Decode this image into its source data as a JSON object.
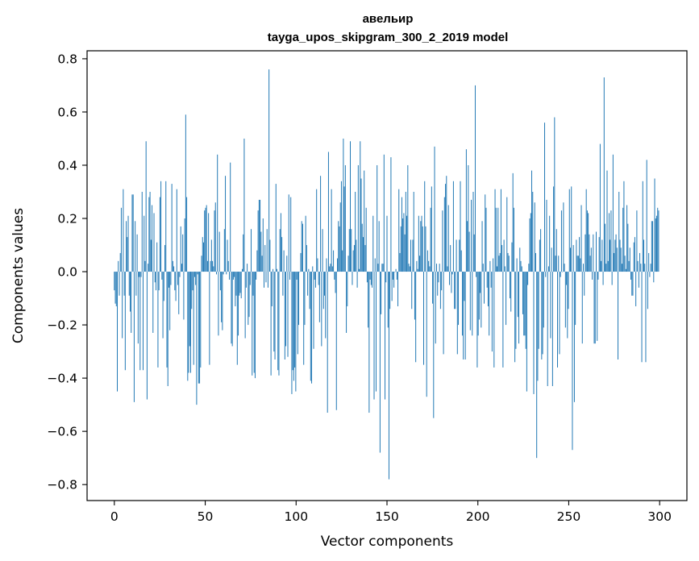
{
  "chart_data": {
    "type": "bar",
    "title": "авельир",
    "subtitle": "tayga_upos_skipgram_300_2_2019 model",
    "xlabel": "Vector components",
    "ylabel": "Components values",
    "xlim": [
      -15,
      315
    ],
    "ylim": [
      -0.86,
      0.83
    ],
    "xticks": [
      0,
      50,
      100,
      150,
      200,
      250,
      300
    ],
    "yticks": [
      -0.8,
      -0.6,
      -0.4,
      -0.2,
      0.0,
      0.2,
      0.4,
      0.6,
      0.8
    ],
    "ytick_labels": [
      "−0.8",
      "−0.6",
      "−0.4",
      "−0.2",
      "0.0",
      "0.2",
      "0.4",
      "0.6",
      "0.8"
    ],
    "bar_color": "#1f77b4",
    "grid": false,
    "values": [
      -0.07,
      -0.12,
      -0.13,
      -0.45,
      0.04,
      -0.09,
      0.07,
      0.24,
      -0.25,
      0.31,
      -0.09,
      -0.37,
      0.19,
      0.13,
      0.21,
      -0.09,
      -0.15,
      -0.23,
      0.29,
      0.29,
      -0.49,
      0.19,
      -0.09,
      0.14,
      -0.27,
      -0.02,
      -0.37,
      -0.02,
      0.3,
      -0.37,
      0.21,
      0.04,
      0.49,
      -0.48,
      0.03,
      0.28,
      0.3,
      0.12,
      0.25,
      -0.23,
      0.22,
      -0.04,
      -0.07,
      0.11,
      -0.36,
      -0.07,
      0.28,
      0.34,
      -0.03,
      -0.25,
      -0.11,
      0.1,
      0.34,
      -0.36,
      -0.43,
      -0.06,
      -0.22,
      -0.05,
      0.33,
      0.04,
      0.02,
      -0.07,
      -0.11,
      0.31,
      -0.05,
      -0.16,
      -0.02,
      0.17,
      0.03,
      0.14,
      -0.18,
      0.2,
      0.59,
      0.28,
      -0.41,
      -0.38,
      -0.28,
      -0.38,
      -0.14,
      -0.07,
      -0.35,
      -0.02,
      -0.05,
      -0.5,
      -0.01,
      -0.42,
      -0.42,
      -0.36,
      0.06,
      0.13,
      0.11,
      0.23,
      0.24,
      0.25,
      0.04,
      0.22,
      -0.35,
      0.04,
      0.12,
      0.04,
      0.02,
      0.23,
      0.26,
      -0.01,
      0.44,
      -0.24,
      0.15,
      -0.07,
      -0.19,
      -0.22,
      -0.01,
      0.16,
      0.36,
      -0.01,
      0.12,
      0.04,
      -0.03,
      0.41,
      -0.27,
      -0.28,
      -0.03,
      -0.02,
      -0.13,
      -0.09,
      -0.35,
      -0.24,
      -0.09,
      -0.08,
      -0.1,
      0.01,
      0.14,
      0.5,
      -0.25,
      -0.06,
      0.03,
      -0.2,
      -0.17,
      -0.05,
      0.16,
      -0.39,
      -0.09,
      -0.38,
      -0.4,
      -0.03,
      0.08,
      0.23,
      0.27,
      0.27,
      0.15,
      0.06,
      0.2,
      -0.06,
      0.1,
      -0.04,
      0.16,
      -0.06,
      0.76,
      0.12,
      -0.39,
      -0.13,
      0.01,
      -0.3,
      -0.33,
      0.33,
      0.01,
      -0.37,
      -0.39,
      0.16,
      0.22,
      0.13,
      -0.09,
      0.08,
      -0.33,
      -0.28,
      0.06,
      -0.32,
      0.29,
      -0.03,
      0.28,
      -0.46,
      -0.37,
      -0.41,
      -0.36,
      -0.45,
      -0.03,
      -0.31,
      -0.2,
      0.0,
      0.07,
      0.19,
      0.18,
      -0.35,
      -0.2,
      0.21,
      0.1,
      -0.09,
      0.01,
      -0.14,
      -0.41,
      -0.42,
      0.02,
      -0.29,
      -0.03,
      -0.06,
      0.31,
      0.05,
      -0.05,
      -0.19,
      0.36,
      -0.28,
      0.16,
      -0.14,
      -0.09,
      -0.25,
      0.05,
      -0.53,
      0.45,
      0.02,
      0.03,
      0.31,
      0.02,
      0.08,
      -0.03,
      -0.08,
      -0.52,
      0.05,
      0.19,
      0.17,
      0.26,
      0.34,
      0.08,
      0.5,
      0.32,
      0.4,
      -0.23,
      -0.13,
      0.06,
      0.16,
      0.49,
      0.16,
      -0.05,
      0.08,
      0.1,
      0.3,
      0.12,
      -0.06,
      0.4,
      0.01,
      0.49,
      0.35,
      0.18,
      0.13,
      0.38,
      0.1,
      0.24,
      -0.04,
      -0.21,
      -0.53,
      -0.03,
      -0.05,
      -0.06,
      0.21,
      -0.48,
      0.05,
      -0.45,
      0.4,
      0.03,
      0.19,
      -0.68,
      -0.16,
      0.03,
      0.03,
      0.44,
      -0.48,
      -0.04,
      0.21,
      -0.21,
      -0.78,
      -0.14,
      0.43,
      -0.11,
      -0.03,
      -0.06,
      0.0,
      0.01,
      -0.03,
      -0.13,
      0.31,
      0.07,
      0.17,
      0.28,
      0.2,
      0.22,
      0.14,
      0.3,
      0.21,
      0.4,
      0.03,
      0.02,
      0.12,
      -0.14,
      0.12,
      0.3,
      -0.18,
      -0.34,
      0.04,
      0.01,
      0.21,
      0.06,
      0.19,
      0.21,
      0.17,
      -0.35,
      0.34,
      0.17,
      -0.47,
      0.08,
      0.04,
      0.02,
      0.24,
      0.32,
      -0.12,
      -0.55,
      0.47,
      -0.27,
      0.03,
      -0.09,
      -0.04,
      0.03,
      -0.14,
      -0.07,
      0.23,
      -0.31,
      0.28,
      0.33,
      0.36,
      0.02,
      0.25,
      -0.05,
      0.1,
      -0.08,
      -0.01,
      0.34,
      -0.14,
      -0.14,
      0.12,
      -0.31,
      -0.2,
      0.12,
      0.34,
      0.08,
      -0.24,
      -0.33,
      -0.11,
      -0.33,
      0.46,
      0.19,
      0.4,
      0.15,
      -0.22,
      0.27,
      -0.24,
      0.3,
      0.14,
      0.7,
      -0.02,
      -0.36,
      -0.24,
      -0.18,
      -0.08,
      -0.21,
      0.19,
      0.03,
      -0.12,
      0.29,
      0.24,
      -0.06,
      -0.13,
      -0.24,
      0.04,
      -0.06,
      -0.3,
      0.05,
      -0.36,
      0.31,
      0.24,
      0.02,
      0.24,
      0.06,
      0.07,
      0.31,
      0.1,
      -0.36,
      0.12,
      0.02,
      -0.2,
      0.28,
      0.07,
      0.06,
      -0.1,
      -0.15,
      0.11,
      0.37,
      0.24,
      -0.34,
      -0.29,
      0.05,
      -0.17,
      -0.27,
      0.09,
      0.04,
      0.02,
      -0.16,
      -0.24,
      -0.24,
      -0.29,
      -0.45,
      -0.05,
      0.03,
      0.2,
      0.22,
      0.38,
      0.3,
      -0.46,
      0.26,
      0.07,
      -0.7,
      -0.41,
      -0.29,
      0.12,
      0.16,
      -0.33,
      -0.31,
      -0.21,
      0.56,
      -0.02,
      0.27,
      -0.43,
      0.02,
      0.21,
      -0.25,
      0.09,
      -0.43,
      0.32,
      0.58,
      0.06,
      0.16,
      -0.36,
      0.06,
      -0.31,
      -0.02,
      0.23,
      0.0,
      0.26,
      0.03,
      -0.21,
      -0.05,
      -0.25,
      -0.14,
      0.31,
      0.09,
      0.32,
      -0.67,
      0.1,
      -0.49,
      -0.2,
      0.12,
      0.06,
      0.06,
      0.13,
      0.05,
      0.25,
      -0.27,
      0.03,
      -0.09,
      0.14,
      0.31,
      0.23,
      0.22,
      0.14,
      0.06,
      0.09,
      -0.03,
      0.14,
      -0.27,
      -0.27,
      0.15,
      -0.26,
      -0.03,
      0.13,
      0.48,
      0.04,
      0.12,
      -0.05,
      0.73,
      0.18,
      0.03,
      0.38,
      0.04,
      0.22,
      0.12,
      0.23,
      -0.05,
      0.44,
      0.07,
      0.12,
      0.14,
      0.09,
      -0.33,
      0.3,
      0.12,
      0.09,
      0.03,
      0.24,
      0.34,
      0.06,
      0.01,
      0.25,
      0.18,
      0.04,
      0.09,
      -0.03,
      -0.09,
      -0.09,
      0.11,
      0.13,
      -0.13,
      0.23,
      0.04,
      -0.06,
      0.07,
      0.03,
      -0.34,
      0.34,
      0.12,
      0.03,
      -0.34,
      0.42,
      -0.14,
      0.07,
      -0.02,
      0.03,
      0.19,
      0.19,
      -0.04,
      0.35,
      0.2,
      0.21,
      0.24,
      0.23
    ]
  }
}
